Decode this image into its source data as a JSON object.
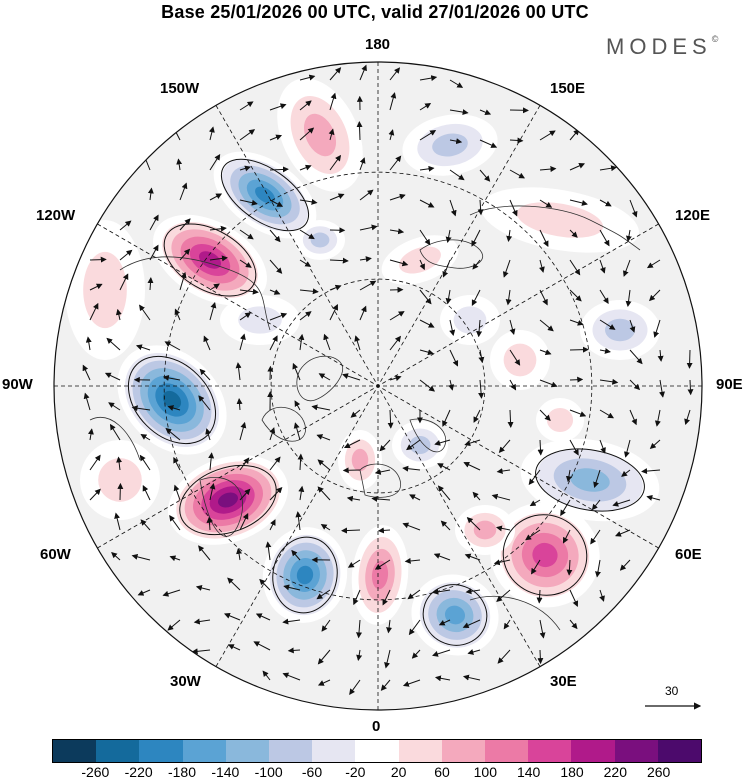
{
  "title": "Base 25/01/2026 00 UTC, valid 27/01/2026 00 UTC",
  "logo": "MODES",
  "logo_mark": "©",
  "longitude_labels": {
    "top": "180",
    "bottom": "0",
    "left": "90W",
    "right": "90E",
    "upper_left": "150W",
    "upper_right": "150E",
    "left_upper": "120W",
    "right_upper": "120E",
    "left_lower": "60W",
    "right_lower": "60E",
    "lower_left": "30W",
    "lower_right": "30E"
  },
  "reference_vector": {
    "label": "30"
  },
  "colorbar": {
    "ticks": [
      "-260",
      "-220",
      "-180",
      "-140",
      "-100",
      "-60",
      "-20",
      "20",
      "60",
      "100",
      "140",
      "180",
      "220",
      "260"
    ],
    "colors": [
      "#0c3a5c",
      "#146a9c",
      "#2d86c0",
      "#5ba3d4",
      "#8ab8dc",
      "#bcc8e4",
      "#e6e6f2",
      "#ffffff",
      "#fadadd",
      "#f4a9bd",
      "#ec7aa6",
      "#d9449a",
      "#b01a8a",
      "#7a0f7e",
      "#4c0a6c"
    ]
  },
  "map_colors": {
    "ocean": "#f1f1f1",
    "line": "#111111"
  }
}
